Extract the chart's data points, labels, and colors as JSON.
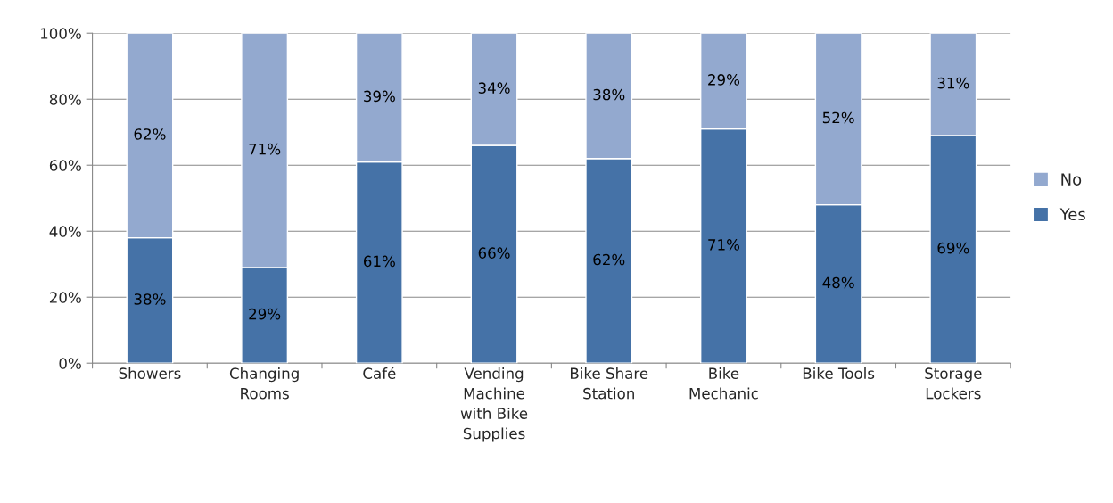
{
  "chart_data": {
    "type": "bar",
    "stacked": true,
    "categories": [
      "Showers",
      "Changing\nRooms",
      "Café",
      "Vending\nMachine\nwith Bike\nSupplies",
      "Bike Share\nStation",
      "Bike\nMechanic",
      "Bike Tools",
      "Storage\nLockers"
    ],
    "series": [
      {
        "name": "Yes",
        "color": "#4572a7",
        "values": [
          38,
          29,
          61,
          66,
          62,
          71,
          48,
          69
        ]
      },
      {
        "name": "No",
        "color": "#93a9cf",
        "values": [
          62,
          71,
          39,
          34,
          38,
          29,
          52,
          31
        ]
      }
    ],
    "ylim": [
      0,
      100
    ],
    "yticks": [
      {
        "value": 0,
        "label": "0%"
      },
      {
        "value": 20,
        "label": "20%"
      },
      {
        "value": 40,
        "label": "40%"
      },
      {
        "value": 60,
        "label": "60%"
      },
      {
        "value": 80,
        "label": "80%"
      },
      {
        "value": 100,
        "label": "100%"
      }
    ],
    "grid": "y",
    "legend": "right",
    "value_labels": [
      [
        "38%",
        "29%",
        "61%",
        "66%",
        "62%",
        "71%",
        "48%",
        "69%"
      ],
      [
        "62%",
        "71%",
        "39%",
        "34%",
        "38%",
        "29%",
        "52%",
        "31%"
      ]
    ]
  }
}
